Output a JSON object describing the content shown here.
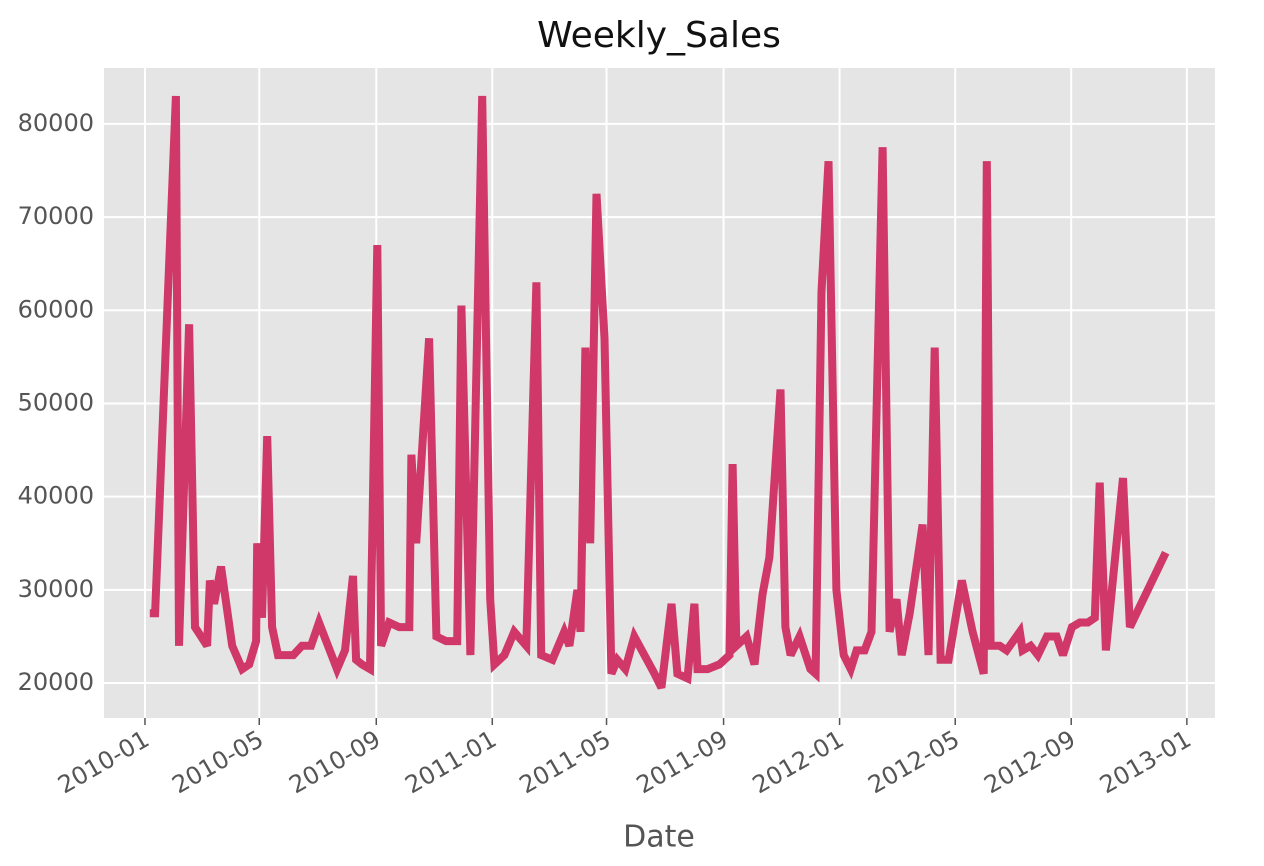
{
  "chart_data": {
    "type": "line",
    "title": "Weekly_Sales",
    "x_label": "Date",
    "x": [
      2010.014,
      2010.029,
      2010.089,
      2010.098,
      2010.127,
      2010.144,
      2010.179,
      2010.187,
      2010.199,
      2010.219,
      2010.251,
      2010.28,
      2010.3,
      2010.32,
      2010.323,
      2010.337,
      2010.352,
      2010.366,
      2010.383,
      2010.427,
      2010.452,
      2010.478,
      2010.501,
      2010.527,
      2010.553,
      2010.576,
      2010.599,
      2010.608,
      2010.625,
      2010.648,
      2010.669,
      2010.68,
      2010.703,
      2010.732,
      2010.761,
      2010.767,
      2010.781,
      2010.818,
      2010.839,
      2010.867,
      2010.899,
      2010.911,
      2010.937,
      2010.971,
      2010.994,
      2011.006,
      2011.035,
      2011.063,
      2011.098,
      2011.127,
      2011.141,
      2011.173,
      2011.207,
      2011.222,
      2011.245,
      2011.254,
      2011.268,
      2011.282,
      2011.3,
      2011.323,
      2011.343,
      2011.36,
      2011.383,
      2011.409,
      2011.467,
      2011.487,
      2011.516,
      2011.533,
      2011.562,
      2011.582,
      2011.591,
      2011.62,
      2011.654,
      2011.683,
      2011.692,
      2011.703,
      2011.732,
      2011.755,
      2011.778,
      2011.798,
      2011.83,
      2011.844,
      2011.859,
      2011.885,
      2011.916,
      2011.931,
      2011.948,
      2011.968,
      2011.991,
      2012.012,
      2012.032,
      2012.049,
      2012.072,
      2012.092,
      2012.124,
      2012.144,
      2012.164,
      2012.179,
      2012.202,
      2012.239,
      2012.256,
      2012.274,
      2012.291,
      2012.314,
      2012.352,
      2012.383,
      2012.415,
      2012.424,
      2012.435,
      2012.461,
      2012.481,
      2012.519,
      2012.527,
      2012.55,
      2012.571,
      2012.597,
      2012.625,
      2012.643,
      2012.669,
      2012.692,
      2012.715,
      2012.735,
      2012.749,
      2012.767,
      2012.816,
      2012.836,
      2012.939
    ],
    "series": [
      {
        "name": "Weekly_Sales",
        "color": "#cf3868",
        "values": [
          27500,
          27500,
          83000,
          24000,
          58500,
          26000,
          24000,
          31000,
          28500,
          32500,
          24000,
          21500,
          22000,
          24500,
          35000,
          27000,
          46500,
          26000,
          23000,
          23000,
          24000,
          24000,
          26500,
          24000,
          21500,
          23500,
          31500,
          22500,
          22000,
          21500,
          67000,
          24000,
          26500,
          26000,
          26000,
          44500,
          35000,
          57000,
          25000,
          24500,
          24500,
          60500,
          23000,
          83000,
          29000,
          22000,
          23000,
          25500,
          24000,
          63000,
          23000,
          22500,
          25500,
          24000,
          30000,
          25500,
          56000,
          35000,
          72500,
          57000,
          21000,
          22500,
          21500,
          25000,
          21000,
          19500,
          28500,
          21000,
          20500,
          28500,
          21500,
          21500,
          22000,
          23000,
          43500,
          24000,
          25000,
          22000,
          29500,
          33500,
          51500,
          26000,
          23000,
          25000,
          21500,
          21000,
          62000,
          76000,
          30000,
          23000,
          21500,
          23500,
          23500,
          25500,
          77500,
          25500,
          29000,
          23000,
          27500,
          37000,
          23000,
          56000,
          22500,
          22500,
          31000,
          25500,
          21000,
          76000,
          24000,
          24000,
          23500,
          25500,
          23500,
          24000,
          23000,
          25000,
          25000,
          23000,
          26000,
          26500,
          26500,
          27000,
          41500,
          23500,
          42000,
          26000,
          34000
        ]
      }
    ],
    "xlim": [
      2009.882,
      2013.081
    ],
    "ylim": [
      16250,
      86000
    ],
    "xticks": [
      {
        "value": 2010,
        "label": "2010-01"
      },
      {
        "value": 2010.329,
        "label": "2010-05"
      },
      {
        "value": 2010.666,
        "label": "2010-09"
      },
      {
        "value": 2011,
        "label": "2011-01"
      },
      {
        "value": 2011.329,
        "label": "2011-05"
      },
      {
        "value": 2011.666,
        "label": "2011-09"
      },
      {
        "value": 2012,
        "label": "2012-01"
      },
      {
        "value": 2012.333,
        "label": "2012-05"
      },
      {
        "value": 2012.667,
        "label": "2012-09"
      },
      {
        "value": 2013,
        "label": "2013-01"
      }
    ],
    "yticks": [
      20000,
      30000,
      40000,
      50000,
      60000,
      70000,
      80000
    ],
    "grid": true
  }
}
